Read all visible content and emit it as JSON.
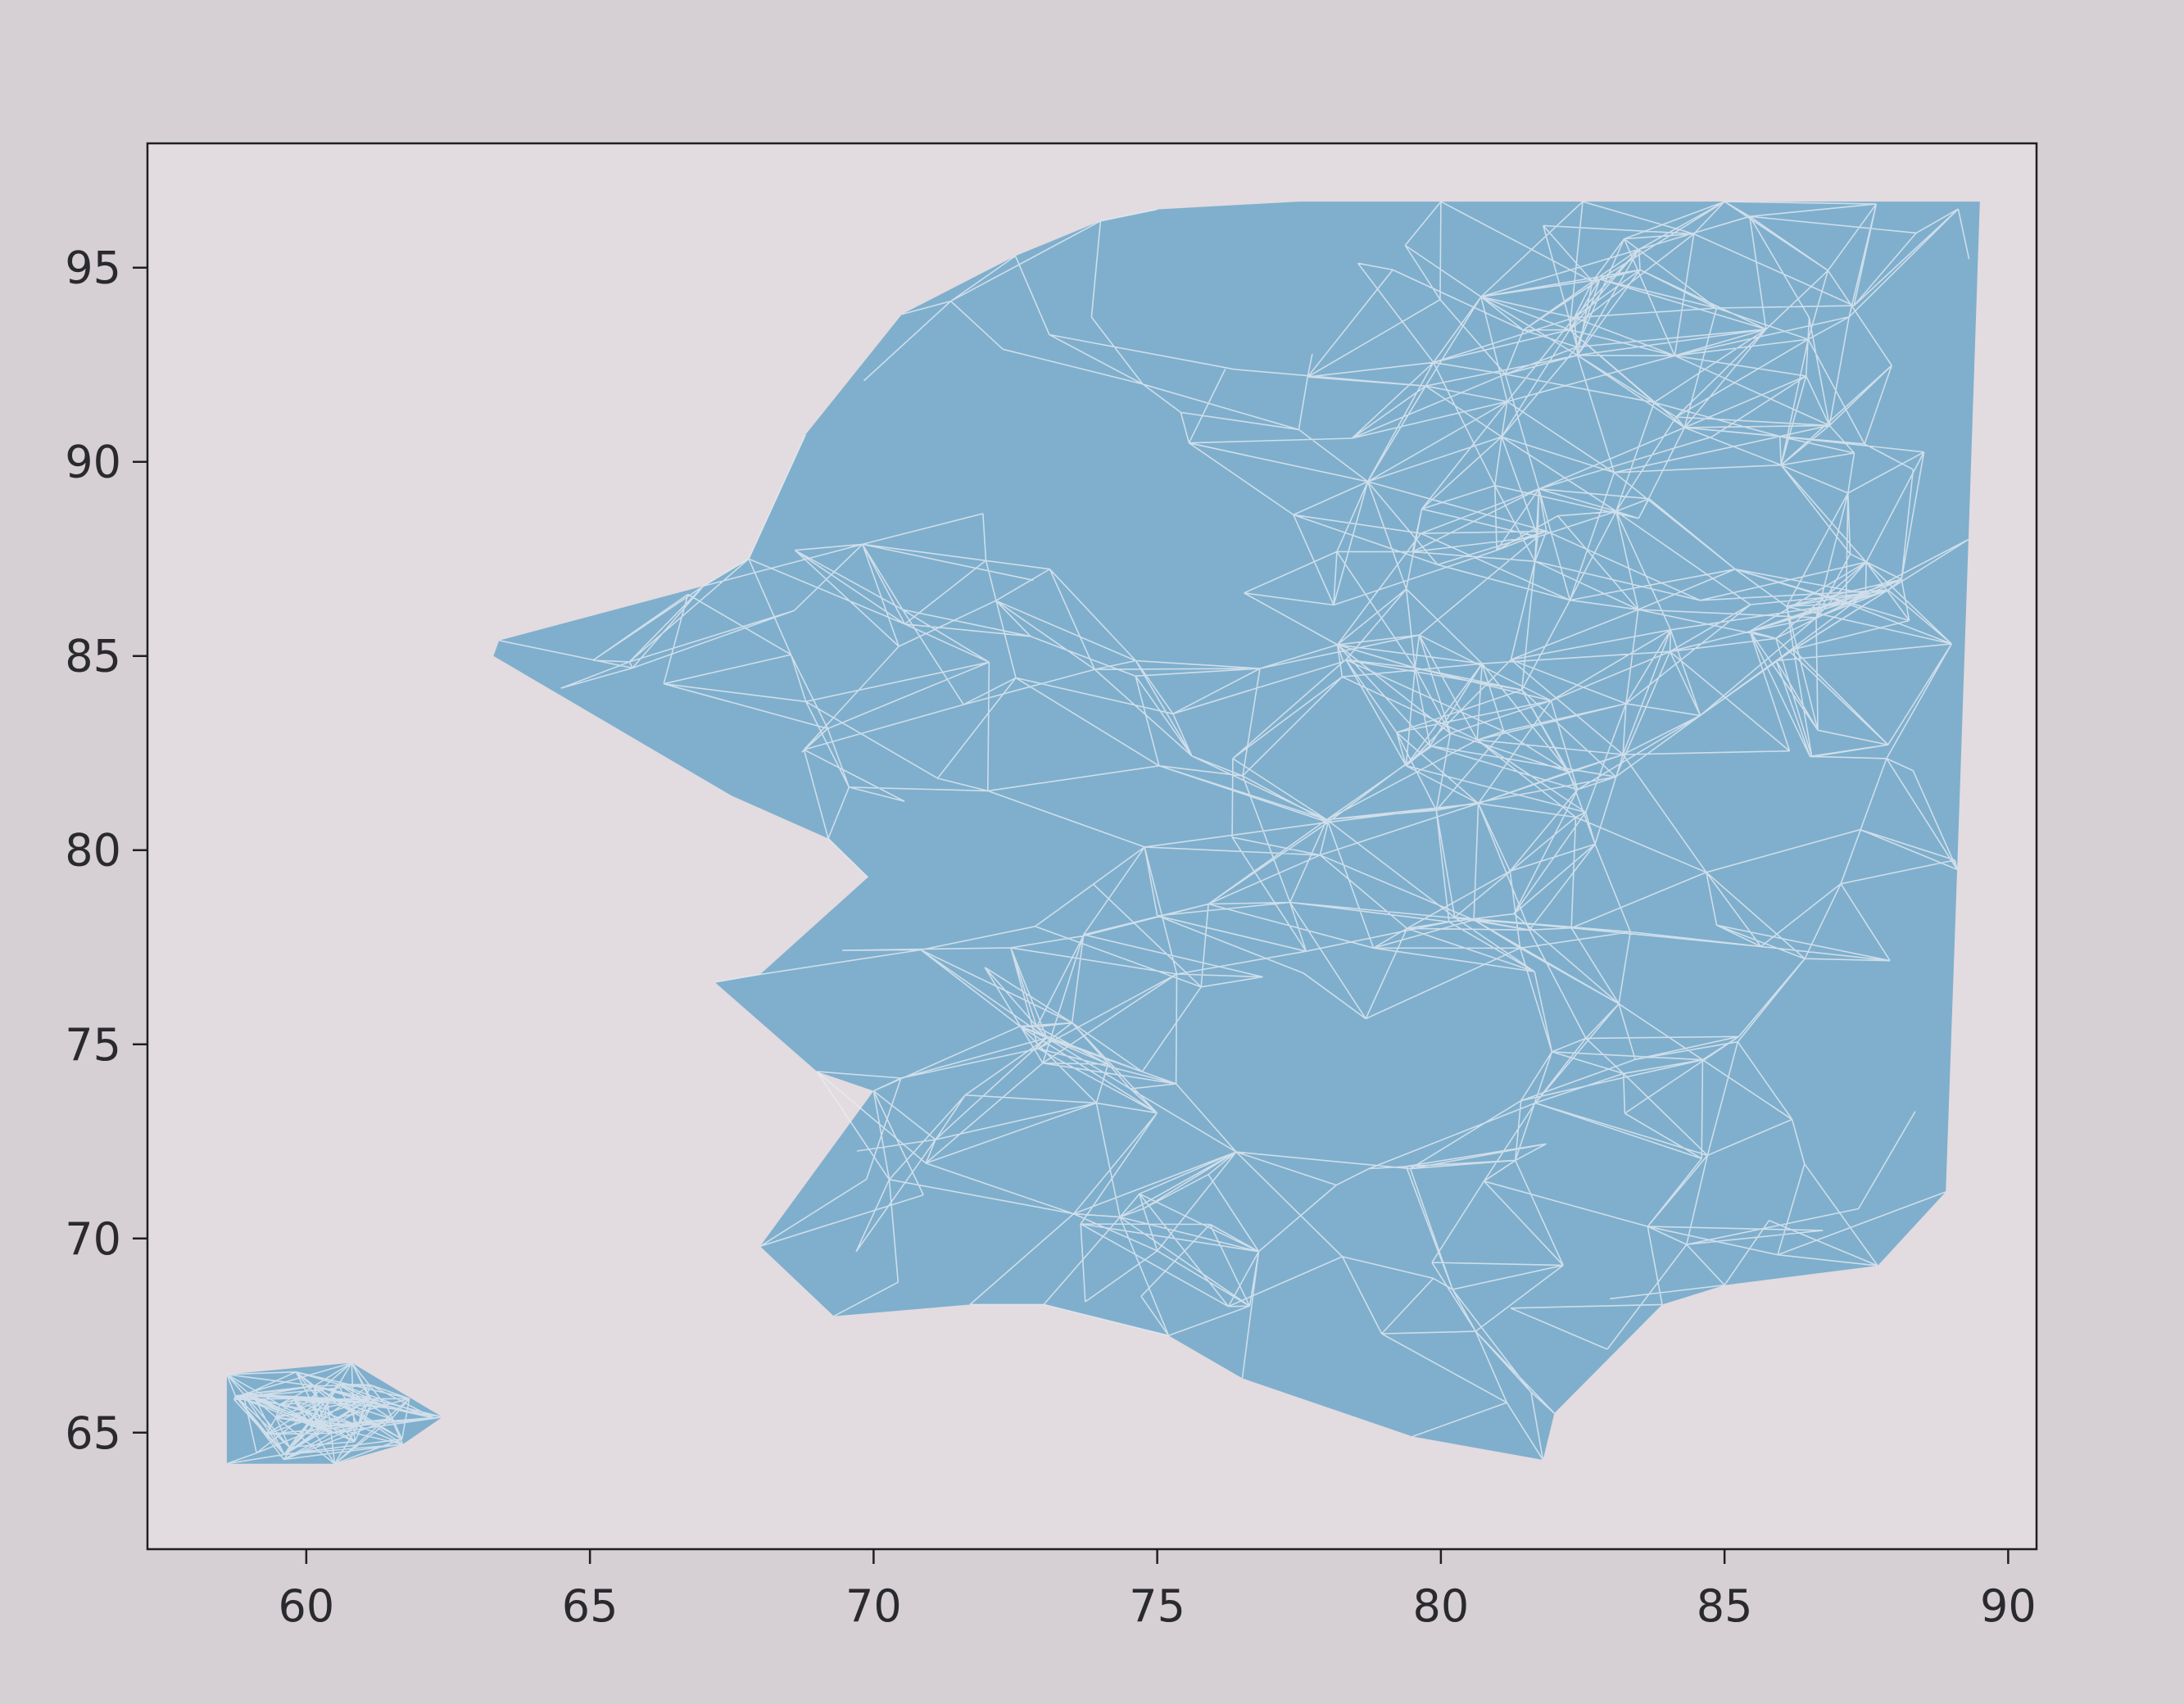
{
  "colors": {
    "background": "#d6cfd3",
    "axes_face": "#e2dbe0",
    "fill": "#7fafcd",
    "mesh_lines": "#e9eef3",
    "axis_lines": "#1f1f22"
  },
  "chart_data": {
    "type": "area",
    "description_of_marks": "filled triangulated mesh (tripcolor-style), two separate regions",
    "title": "",
    "xlabel": "",
    "ylabel": "",
    "xlim": [
      57.2,
      90.5
    ],
    "ylim": [
      62.0,
      98.2
    ],
    "xticks": [
      60,
      65,
      70,
      75,
      80,
      85,
      90
    ],
    "yticks": [
      65,
      70,
      75,
      80,
      85,
      90,
      95
    ],
    "grid": false,
    "legend": "none",
    "series": [
      {
        "polygon": [
          [
            75.0,
            96.5
          ],
          [
            77.5,
            96.7
          ],
          [
            80.0,
            96.7
          ],
          [
            82.5,
            96.7
          ],
          [
            85.0,
            96.7
          ],
          [
            89.5,
            96.7
          ],
          [
            89.3,
            88.0
          ],
          [
            89.1,
            79.5
          ],
          [
            88.9,
            71.2
          ],
          [
            87.7,
            69.3
          ],
          [
            85.0,
            68.8
          ],
          [
            83.9,
            68.3
          ],
          [
            82.0,
            65.5
          ],
          [
            81.8,
            64.3
          ],
          [
            79.5,
            64.9
          ],
          [
            76.5,
            66.4
          ],
          [
            75.2,
            67.5
          ],
          [
            73.0,
            68.3
          ],
          [
            71.7,
            68.3
          ],
          [
            69.3,
            68.0
          ],
          [
            68.0,
            69.8
          ],
          [
            70.0,
            73.8
          ],
          [
            69.0,
            74.3
          ],
          [
            67.2,
            76.6
          ],
          [
            68.0,
            76.8
          ],
          [
            69.9,
            79.3
          ],
          [
            69.2,
            80.3
          ],
          [
            67.5,
            81.4
          ],
          [
            63.3,
            85.0
          ],
          [
            63.4,
            85.4
          ],
          [
            67.0,
            86.8
          ],
          [
            67.8,
            87.5
          ],
          [
            68.8,
            90.7
          ],
          [
            70.5,
            93.8
          ],
          [
            72.5,
            95.3
          ],
          [
            74.0,
            96.2
          ]
        ]
      },
      {
        "polygon": [
          [
            58.6,
            66.5
          ],
          [
            60.8,
            66.8
          ],
          [
            62.4,
            65.4
          ],
          [
            61.7,
            64.7
          ],
          [
            60.5,
            64.2
          ],
          [
            58.6,
            64.2
          ]
        ]
      }
    ]
  }
}
